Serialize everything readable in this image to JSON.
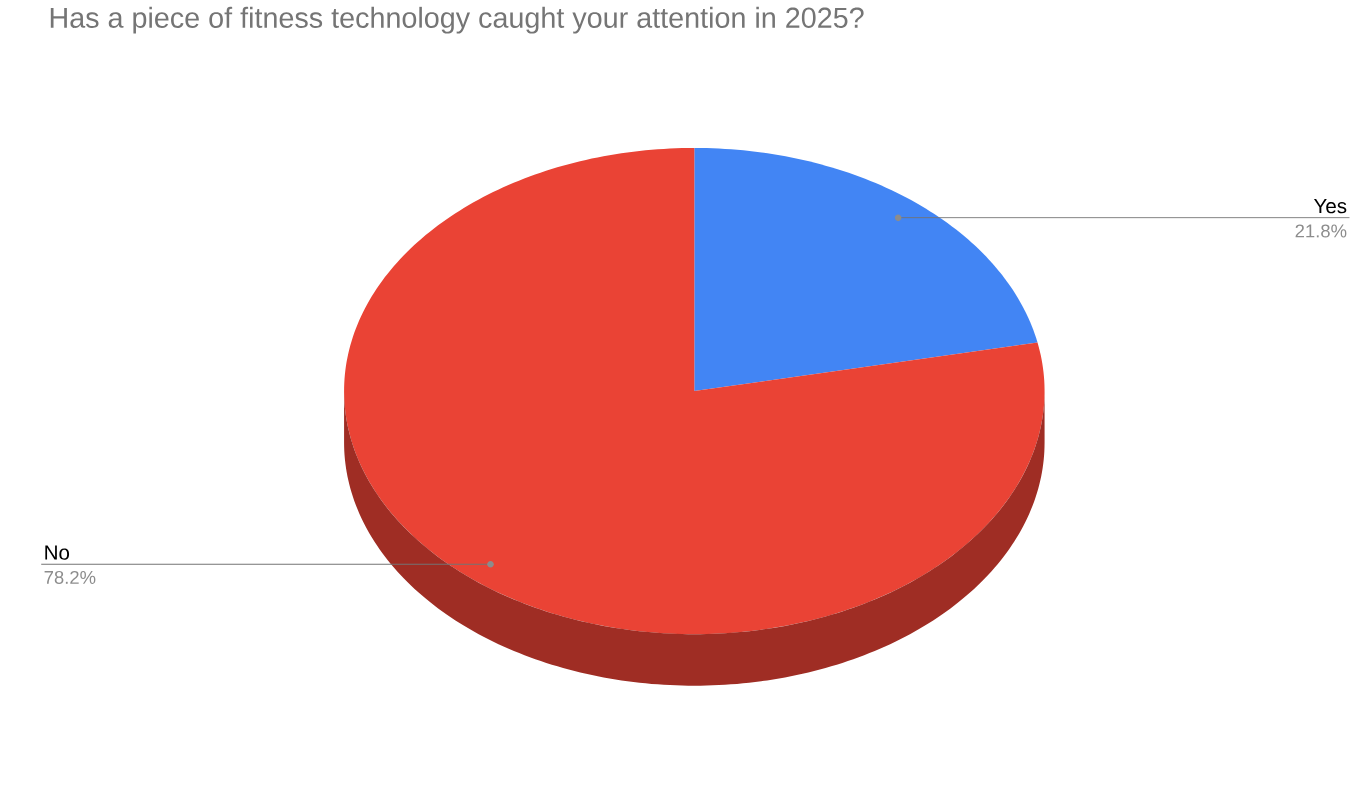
{
  "chart_data": {
    "type": "pie",
    "title": "Has a piece of fitness technology caught your attention in 2025?",
    "categories": [
      "Yes",
      "No"
    ],
    "values": [
      21.8,
      78.2
    ],
    "colors": [
      "#4285f4",
      "#ea4335"
    ],
    "value_labels": [
      "21.8%",
      "78.2%"
    ]
  }
}
